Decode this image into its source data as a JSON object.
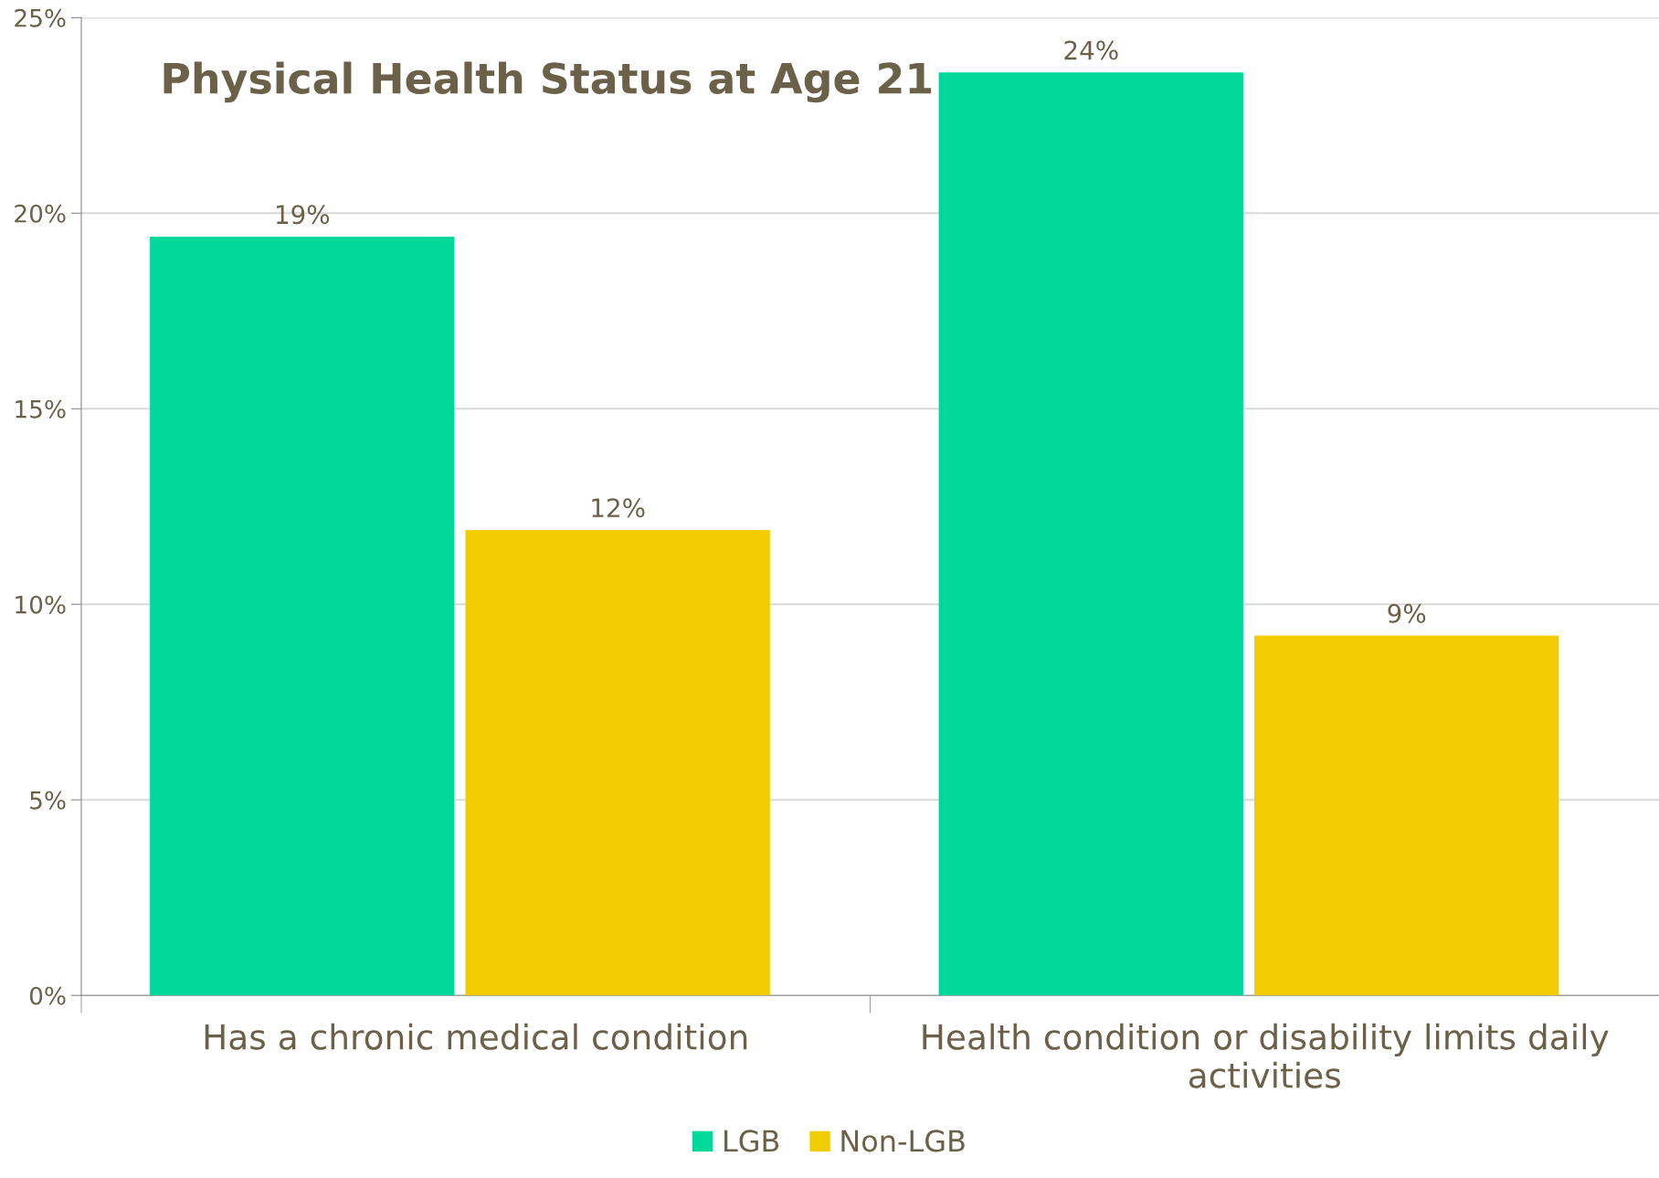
{
  "chart_data": {
    "type": "bar",
    "title": "Physical Health Status at Age 21",
    "categories": [
      "Has a chronic medical condition",
      "Health condition or disability limits daily activities"
    ],
    "series": [
      {
        "name": "LGB",
        "color": "#00d99a",
        "values": [
          19.4,
          23.6
        ],
        "value_labels": [
          "19%",
          "24%"
        ]
      },
      {
        "name": "Non-LGB",
        "color": "#f0cc00",
        "values": [
          11.9,
          9.2
        ],
        "value_labels": [
          "12%",
          "9%"
        ]
      }
    ],
    "ylim": [
      0,
      25
    ],
    "yticks": [
      {
        "value": 0,
        "label": "0%"
      },
      {
        "value": 5,
        "label": "5%"
      },
      {
        "value": 10,
        "label": "10%"
      },
      {
        "value": 15,
        "label": "15%"
      },
      {
        "value": 20,
        "label": "20%"
      },
      {
        "value": 25,
        "label": "25%"
      }
    ],
    "grid": "y",
    "legend": "bottom"
  }
}
